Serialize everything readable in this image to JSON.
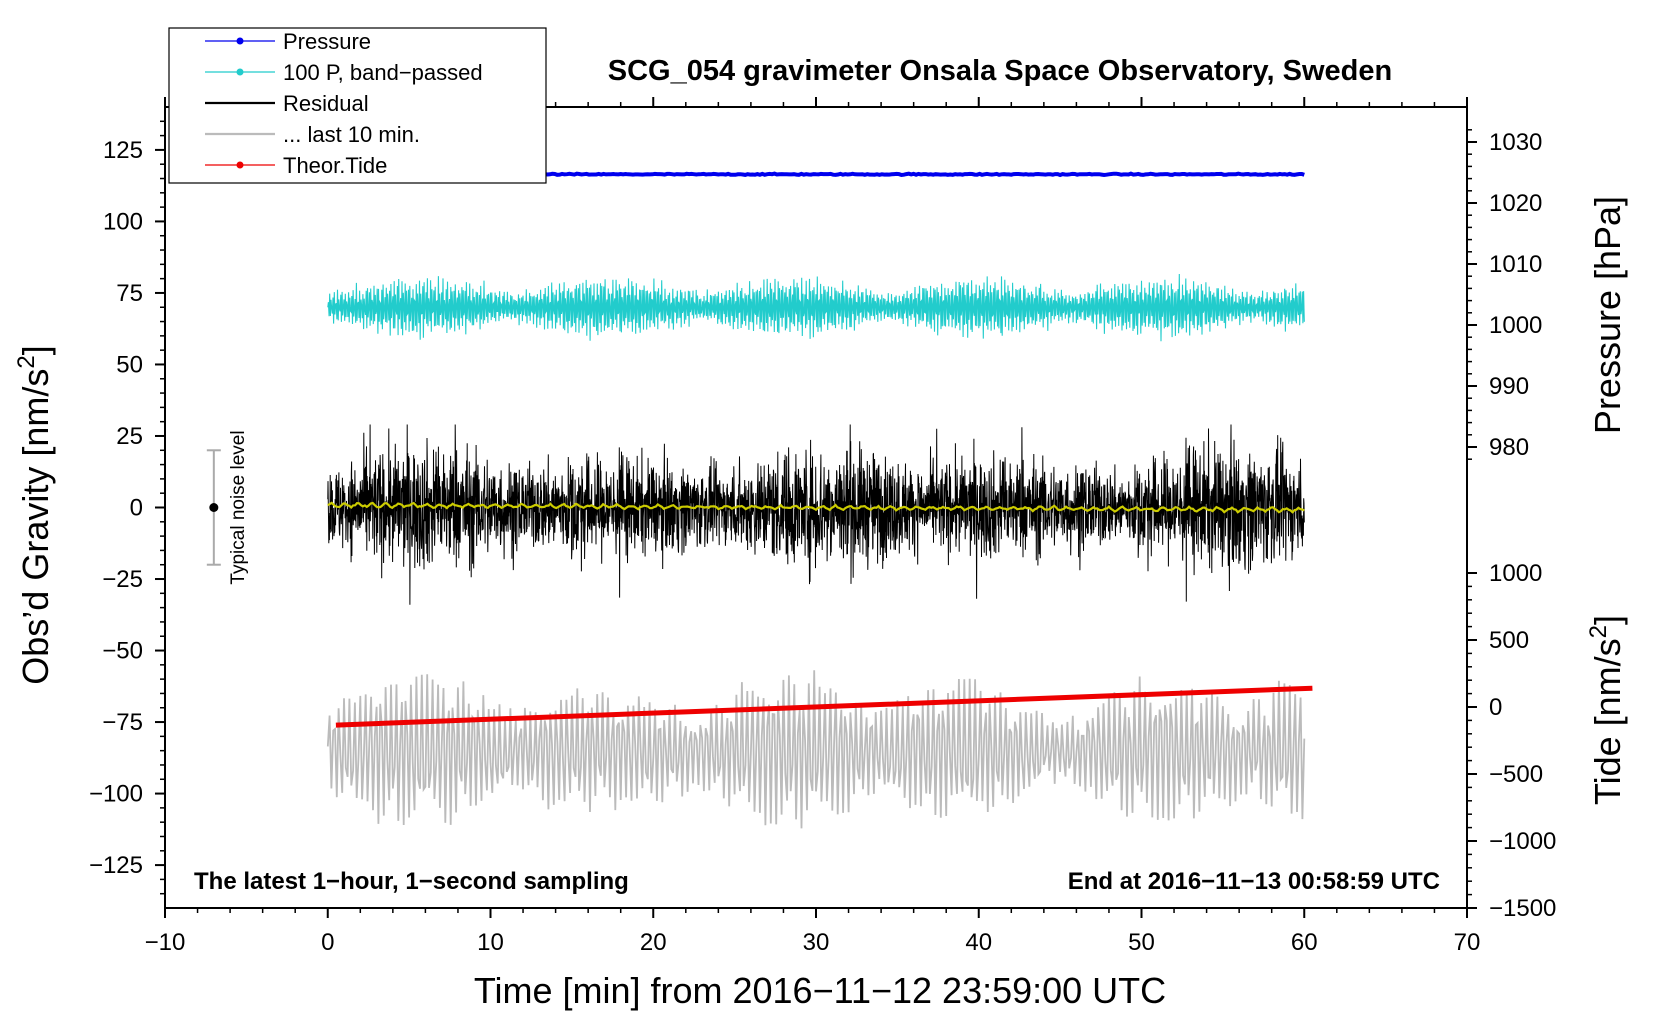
{
  "chart_data": {
    "type": "line",
    "title": "SCG_054 gravimeter Onsala Space Observatory, Sweden",
    "xlabel": "Time [min] from 2016−11−12 23:59:00 UTC",
    "ylabel_left": "Obs’d Gravity [nm/s",
    "ylabel_left_sup": "2",
    "ylabel_left_close": "]",
    "ylabel_pressure": "Pressure [hPa]",
    "ylabel_tide": "Tide [nm/s",
    "ylabel_tide_sup": "2",
    "ylabel_tide_close": "]",
    "xlim": [
      -10,
      70
    ],
    "ylim": [
      -140,
      140
    ],
    "x_ticks": [
      -10,
      0,
      10,
      20,
      30,
      40,
      50,
      60,
      70
    ],
    "x_tick_labels": [
      "−10",
      "0",
      "10",
      "20",
      "30",
      "40",
      "50",
      "60",
      "70"
    ],
    "y_ticks": [
      -125,
      -100,
      -75,
      -50,
      -25,
      0,
      25,
      50,
      75,
      100,
      125
    ],
    "y_tick_labels": [
      "−125",
      "−100",
      "−75",
      "−50",
      "−25",
      "0",
      "25",
      "50",
      "75",
      "100",
      "125"
    ],
    "pressure_ticks": [
      980,
      990,
      1000,
      1010,
      1020,
      1030
    ],
    "pressure_tick_labels": [
      "980",
      "990",
      "1000",
      "1010",
      "1020",
      "1030"
    ],
    "tide_ticks": [
      -1500,
      -1000,
      -500,
      0,
      500,
      1000
    ],
    "tide_tick_labels": [
      "−1500",
      "−1000",
      "−500",
      "0",
      "500",
      "1000"
    ],
    "corner_left": "The latest 1−hour, 1−second sampling",
    "corner_right": "End at 2016−11−13 00:58:59 UTC",
    "noise": {
      "label": "Typical noise level",
      "x": -7,
      "center": 0,
      "low": -20,
      "high": 20
    },
    "legend": [
      {
        "label": "Pressure",
        "color": "#0000ee",
        "marker": true
      },
      {
        "label": "100 P, band−passed",
        "color": "#22cccc",
        "marker": true
      },
      {
        "label": "Residual",
        "color": "#000000",
        "marker": false
      },
      {
        "label": "... last 10 min.",
        "color": "#bbbbbb",
        "marker": false
      },
      {
        "label": "Theor.Tide",
        "color": "#ee0000",
        "marker": true
      }
    ],
    "series": [
      {
        "name": "Pressure",
        "color": "#0000ee",
        "axis": "pressure",
        "x_range": [
          0,
          60
        ],
        "level_hPa": 1024.7
      },
      {
        "name": "100 P, band−passed",
        "color": "#22cccc",
        "axis": "gravity_offset",
        "x_range": [
          0,
          60
        ],
        "baseline": 70,
        "amplitude": 8
      },
      {
        "name": "Residual",
        "color": "#000000",
        "axis": "gravity",
        "x_range": [
          0,
          60
        ],
        "baseline": 0,
        "amplitude": 15
      },
      {
        "name": "Residual smoothed",
        "color": "#cccc00",
        "axis": "gravity",
        "x_range": [
          0,
          60
        ],
        "baseline": 0,
        "amplitude": 1
      },
      {
        "name": "... last 10 min.",
        "color": "#bbbbbb",
        "axis": "gravity_offset",
        "x_range": [
          0,
          60
        ],
        "baseline": -85,
        "amplitude": 15
      },
      {
        "name": "Theor.Tide",
        "color": "#ee0000",
        "axis": "tide",
        "x": [
          0.5,
          60.5
        ],
        "y": [
          -135,
          140
        ]
      }
    ]
  }
}
